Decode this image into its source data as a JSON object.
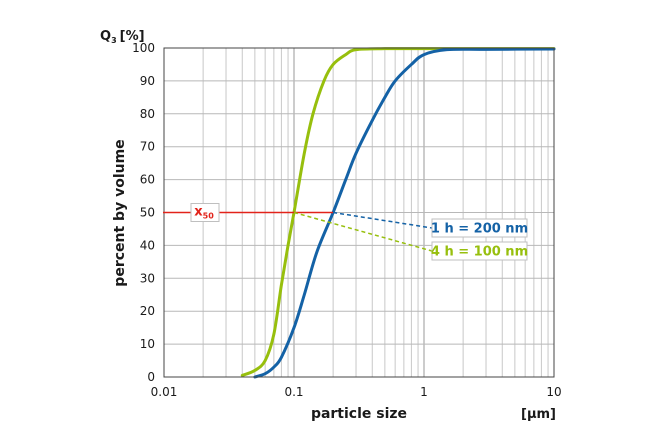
{
  "chart_data": {
    "type": "line",
    "title": "",
    "xlabel": "particle size",
    "xunit": "[µm]",
    "ylabel": "percent by volume",
    "yunit_main": "Q",
    "yunit_sub": "3",
    "yunit_suffix": "[%]",
    "xscale": "log",
    "xlim": [
      0.01,
      10
    ],
    "ylim": [
      0,
      100
    ],
    "xticks": [
      {
        "value": 0.01,
        "label": "0.01"
      },
      {
        "value": 0.1,
        "label": "0.1"
      },
      {
        "value": 1,
        "label": "1"
      },
      {
        "value": 10,
        "label": "10"
      }
    ],
    "yticks": [
      0,
      10,
      20,
      30,
      40,
      50,
      60,
      70,
      80,
      90,
      100
    ],
    "grid": true,
    "x50": {
      "main": "x",
      "sub": "50",
      "value": 50,
      "color": "#e2231a"
    },
    "series": [
      {
        "name": "4 h = 100 nm",
        "color": "#97bf0d",
        "x50_value": 0.1,
        "points": [
          [
            0.04,
            0.5
          ],
          [
            0.05,
            2
          ],
          [
            0.06,
            5
          ],
          [
            0.07,
            13
          ],
          [
            0.08,
            28
          ],
          [
            0.09,
            40
          ],
          [
            0.1,
            50
          ],
          [
            0.12,
            68
          ],
          [
            0.14,
            80
          ],
          [
            0.17,
            90
          ],
          [
            0.2,
            95
          ],
          [
            0.25,
            98
          ],
          [
            0.3,
            99.5
          ],
          [
            0.5,
            99.8
          ],
          [
            1,
            99.8
          ],
          [
            10,
            99.8
          ]
        ]
      },
      {
        "name": "1 h = 200 nm",
        "color": "#1462a6",
        "x50_value": 0.2,
        "points": [
          [
            0.05,
            0
          ],
          [
            0.06,
            1
          ],
          [
            0.07,
            3
          ],
          [
            0.08,
            6
          ],
          [
            0.1,
            15
          ],
          [
            0.12,
            25
          ],
          [
            0.15,
            38
          ],
          [
            0.2,
            50
          ],
          [
            0.25,
            60
          ],
          [
            0.3,
            68
          ],
          [
            0.4,
            78
          ],
          [
            0.5,
            85
          ],
          [
            0.6,
            90
          ],
          [
            0.8,
            95
          ],
          [
            1,
            98
          ],
          [
            1.5,
            99.5
          ],
          [
            3,
            99.6
          ],
          [
            10,
            99.7
          ]
        ]
      }
    ]
  }
}
